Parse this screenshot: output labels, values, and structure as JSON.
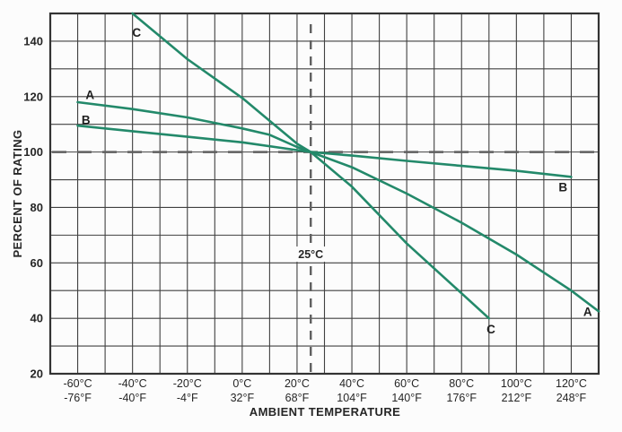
{
  "figure": {
    "background_color": "#fcfcfc",
    "xlabel": "AMBIENT TEMPERATURE",
    "ylabel": "PERCENT OF RATING"
  },
  "chart_data": {
    "type": "line",
    "title": "",
    "xlabel": "AMBIENT TEMPERATURE",
    "ylabel": "PERCENT OF RATING",
    "xlim": [
      -70,
      130
    ],
    "ylim": [
      20,
      150
    ],
    "x_grid_step": 10,
    "y_grid_step": 10,
    "grid": true,
    "grid_color": "#404040",
    "border_color": "#333333",
    "line_color": "#23896a",
    "dash_color": "#5f5f5f",
    "text_color": "#262626",
    "y_ticks": [
      20,
      40,
      60,
      80,
      100,
      120,
      140
    ],
    "x_ticks": [
      {
        "value": -60,
        "celsius": "-60°C",
        "fahrenheit": "-76°F"
      },
      {
        "value": -40,
        "celsius": "-40°C",
        "fahrenheit": "-40°F"
      },
      {
        "value": -20,
        "celsius": "-20°C",
        "fahrenheit": "-4°F"
      },
      {
        "value": 0,
        "celsius": "0°C",
        "fahrenheit": "32°F"
      },
      {
        "value": 20,
        "celsius": "20°C",
        "fahrenheit": "68°F"
      },
      {
        "value": 40,
        "celsius": "40°C",
        "fahrenheit": "104°F"
      },
      {
        "value": 60,
        "celsius": "60°C",
        "fahrenheit": "140°F"
      },
      {
        "value": 80,
        "celsius": "80°C",
        "fahrenheit": "176°F"
      },
      {
        "value": 100,
        "celsius": "100°C",
        "fahrenheit": "212°F"
      },
      {
        "value": 120,
        "celsius": "120°C",
        "fahrenheit": "248°F"
      }
    ],
    "series": [
      {
        "name": "A",
        "points": [
          [
            -60,
            118
          ],
          [
            -40,
            115.5
          ],
          [
            -20,
            112.5
          ],
          [
            0,
            108.5
          ],
          [
            10,
            106.2
          ],
          [
            20,
            101.8
          ],
          [
            25,
            100
          ],
          [
            40,
            94.5
          ],
          [
            60,
            85
          ],
          [
            80,
            74.5
          ],
          [
            100,
            63
          ],
          [
            120,
            50
          ],
          [
            130,
            42.5
          ]
        ]
      },
      {
        "name": "B",
        "points": [
          [
            -60,
            109.5
          ],
          [
            -40,
            107.5
          ],
          [
            -20,
            105.5
          ],
          [
            0,
            103.5
          ],
          [
            20,
            100.7
          ],
          [
            25,
            100
          ],
          [
            40,
            98.7
          ],
          [
            60,
            96.8
          ],
          [
            80,
            95
          ],
          [
            100,
            93.2
          ],
          [
            120,
            91
          ]
        ]
      },
      {
        "name": "C",
        "points": [
          [
            -40,
            150
          ],
          [
            -20,
            133.5
          ],
          [
            0,
            119.5
          ],
          [
            20,
            103
          ],
          [
            25,
            100
          ],
          [
            40,
            87.5
          ],
          [
            60,
            67
          ],
          [
            80,
            49
          ],
          [
            90,
            40
          ]
        ]
      }
    ],
    "curve_labels": [
      {
        "text": "A",
        "x": -55.5,
        "y": 120.5
      },
      {
        "text": "B",
        "x": -57,
        "y": 111.5
      },
      {
        "text": "C",
        "x": -38.5,
        "y": 143
      },
      {
        "text": "C",
        "x": 90.7,
        "y": 36
      },
      {
        "text": "A",
        "x": 126,
        "y": 42.3
      },
      {
        "text": "B",
        "x": 117,
        "y": 87.3
      }
    ],
    "annotations": {
      "h_dashed_line": {
        "y": 100
      },
      "v_dashed_line": {
        "x": 25,
        "label": "25°C",
        "label_y": 61.7
      }
    },
    "legend_position": "none"
  }
}
